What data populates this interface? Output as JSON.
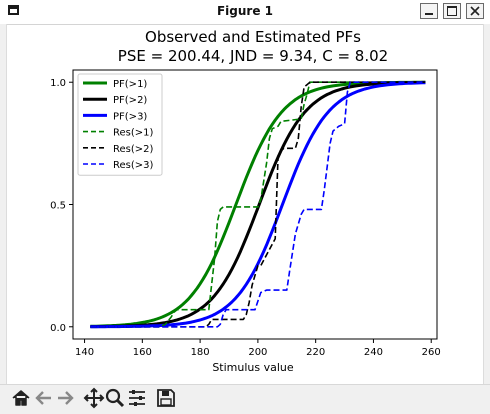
{
  "window": {
    "title": "Figure 1"
  },
  "toolbar": {
    "tools": [
      {
        "name": "home-icon"
      },
      {
        "name": "back-arrow-icon"
      },
      {
        "name": "forward-arrow-icon"
      },
      {
        "name": "pan-move-icon"
      },
      {
        "name": "zoom-magnifier-icon"
      },
      {
        "name": "configure-subplots-icon"
      },
      {
        "name": "save-floppy-icon"
      }
    ]
  },
  "colors": {
    "green": "#008000",
    "black": "#000000",
    "blue": "#0000ff"
  },
  "chart_data": {
    "type": "line",
    "title": "Observed and Estimated PFs",
    "subtitle": "PSE = 200.44,  JND = 9.34,  C = 8.02",
    "xlabel": "Stimulus value",
    "ylabel": "",
    "xlim": [
      136,
      262
    ],
    "ylim": [
      -0.05,
      1.05
    ],
    "xticks": [
      140,
      160,
      180,
      200,
      220,
      240,
      260
    ],
    "yticks": [
      0.0,
      0.5,
      1.0
    ],
    "xtick_labels": [
      "140",
      "160",
      "180",
      "200",
      "220",
      "240",
      "260"
    ],
    "ytick_labels": [
      "0.0",
      "0.5",
      "1.0"
    ],
    "grid": false,
    "legend_position": "top-left",
    "series": [
      {
        "name": "PF(>1)",
        "style": "solid",
        "color": "#008000",
        "kind": "logistic",
        "x0": 192.4,
        "scale": 8.02,
        "x_range": [
          142,
          258
        ]
      },
      {
        "name": "PF(>2)",
        "style": "solid",
        "color": "#000000",
        "kind": "logistic",
        "x0": 200.44,
        "scale": 8.02,
        "x_range": [
          142,
          258
        ]
      },
      {
        "name": "PF(>3)",
        "style": "solid",
        "color": "#0000ff",
        "kind": "logistic",
        "x0": 208.5,
        "scale": 8.02,
        "x_range": [
          142,
          258
        ]
      },
      {
        "name": "Res(>1)",
        "style": "dashed",
        "color": "#008000",
        "kind": "step",
        "x": [
          142,
          166,
          168,
          170,
          171,
          172,
          183,
          185,
          186,
          187,
          188,
          189,
          200,
          201,
          203,
          204,
          205,
          207,
          208,
          215,
          216,
          217,
          218,
          224,
          258
        ],
        "y": [
          0,
          0,
          0.01,
          0.04,
          0.06,
          0.07,
          0.07,
          0.28,
          0.43,
          0.48,
          0.49,
          0.49,
          0.49,
          0.52,
          0.67,
          0.77,
          0.81,
          0.82,
          0.84,
          0.85,
          0.91,
          0.95,
          1,
          1,
          1
        ]
      },
      {
        "name": "Res(>2)",
        "style": "dashed",
        "color": "#000000",
        "kind": "step",
        "x": [
          142,
          182,
          183,
          184,
          185,
          195,
          196,
          197,
          198,
          199,
          200,
          201,
          206,
          207,
          208,
          209,
          213,
          214,
          215,
          216,
          217,
          218,
          219,
          258
        ],
        "y": [
          0,
          0,
          0.01,
          0.03,
          0.03,
          0.03,
          0.05,
          0.1,
          0.17,
          0.21,
          0.25,
          0.25,
          0.36,
          0.7,
          0.72,
          0.73,
          0.73,
          0.77,
          0.9,
          0.98,
          0.99,
          1,
          1,
          1
        ]
      },
      {
        "name": "Res(>3)",
        "style": "dashed",
        "color": "#0000ff",
        "kind": "step",
        "x": [
          142,
          186,
          187,
          188,
          189,
          199,
          201,
          203,
          210,
          211,
          213,
          214,
          215,
          216,
          217,
          222,
          223,
          225,
          226,
          228,
          230,
          231,
          232,
          258
        ],
        "y": [
          0,
          0,
          0.01,
          0.05,
          0.07,
          0.07,
          0.14,
          0.15,
          0.15,
          0.23,
          0.38,
          0.42,
          0.46,
          0.48,
          0.48,
          0.48,
          0.56,
          0.75,
          0.8,
          0.82,
          0.83,
          0.96,
          1,
          1
        ]
      }
    ]
  }
}
